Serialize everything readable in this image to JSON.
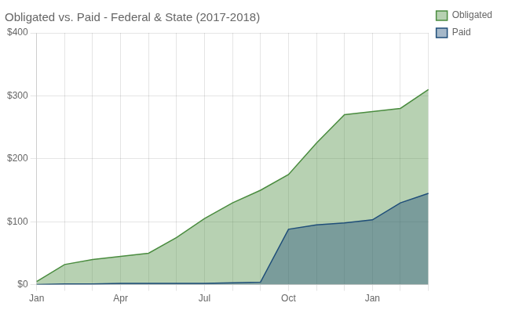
{
  "chart_data": {
    "type": "area",
    "title": "Obligated vs. Paid - Federal & State (2017-2018)",
    "categories": [
      "Jan",
      null,
      null,
      "Apr",
      null,
      null,
      "Jul",
      null,
      null,
      "Oct",
      null,
      null,
      "Jan",
      null,
      null
    ],
    "series": [
      {
        "name": "Obligated",
        "color": "#4a8c3f",
        "values": [
          5,
          32,
          40,
          45,
          50,
          75,
          105,
          130,
          150,
          175,
          225,
          270,
          275,
          280,
          310
        ]
      },
      {
        "name": "Paid",
        "color": "#1f4e79",
        "values": [
          0,
          1,
          1,
          2,
          2,
          2,
          2,
          3,
          4,
          88,
          95,
          98,
          103,
          130,
          145
        ]
      }
    ],
    "ylim": [
      0,
      400
    ],
    "yticks": [
      {
        "value": 0,
        "label": "$0"
      },
      {
        "value": 100,
        "label": "$100"
      },
      {
        "value": 200,
        "label": "$200"
      },
      {
        "value": 300,
        "label": "$300"
      },
      {
        "value": 400,
        "label": "$400"
      }
    ],
    "grid": true,
    "legend": "right"
  }
}
